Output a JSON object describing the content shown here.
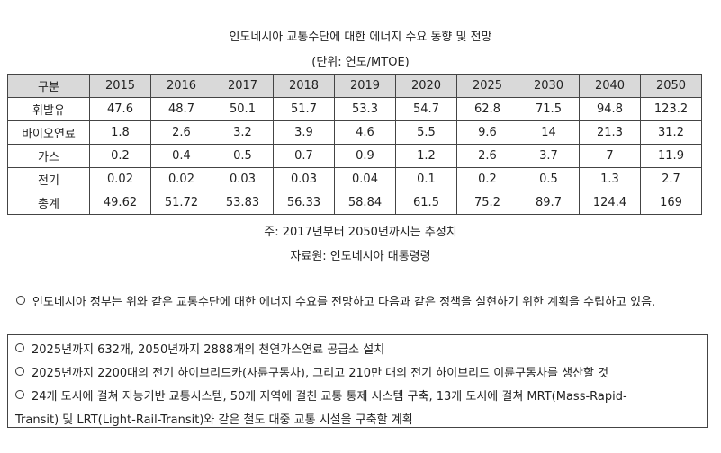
{
  "title": "인도네시아 교통수단에 대한 에너지 수요 동향 및 전망",
  "unit": "(단위: 연도/MTOE)",
  "table": {
    "corner": "구분",
    "years": [
      "2015",
      "2016",
      "2017",
      "2018",
      "2019",
      "2020",
      "2025",
      "2030",
      "2040",
      "2050"
    ],
    "rows": [
      {
        "label": "휘발유",
        "values": [
          "47.6",
          "48.7",
          "50.1",
          "51.7",
          "53.3",
          "54.7",
          "62.8",
          "71.5",
          "94.8",
          "123.2"
        ]
      },
      {
        "label": "바이오연료",
        "values": [
          "1.8",
          "2.6",
          "3.2",
          "3.9",
          "4.6",
          "5.5",
          "9.6",
          "14",
          "21.3",
          "31.2"
        ]
      },
      {
        "label": "가스",
        "values": [
          "0.2",
          "0.4",
          "0.5",
          "0.7",
          "0.9",
          "1.2",
          "2.6",
          "3.7",
          "7",
          "11.9"
        ]
      },
      {
        "label": "전기",
        "values": [
          "0.02",
          "0.02",
          "0.03",
          "0.03",
          "0.04",
          "0.1",
          "0.2",
          "0.5",
          "1.3",
          "2.7"
        ]
      },
      {
        "label": "총계",
        "values": [
          "49.62",
          "51.72",
          "53.83",
          "56.33",
          "58.84",
          "61.5",
          "75.2",
          "89.7",
          "124.4",
          "169"
        ]
      }
    ]
  },
  "note": "주: 2017년부터 2050년까지는 추정치",
  "source": "자료원: 인도네시아 대통령령",
  "paragraph": "인도네시아 정부는 위와 같은 교통수단에 대한 에너지 수요를 전망하고 다음과 같은 정책을 실현하기 위한 계획을 수립하고 있음.",
  "box_items": [
    "2025년까지 632개, 2050년까지 2888개의 천연가스연료 공급소 설치",
    "2025년까지 2200대의 전기 하이브리드카(사륜구동차), 그리고 210만 대의 전기 하이브리드 이륜구동차를 생산할 것",
    "24개 도시에 걸쳐 지능기반 교통시스템, 50개 지역에 걸친 교통 통제 시스템 구축, 13개 도시에 걸쳐 MRT(Mass-Rapid-",
    "Transit) 및 LRT(Light-Rail-Transit)와 같은 철도 대중 교통 시설을 구축할 계획"
  ]
}
